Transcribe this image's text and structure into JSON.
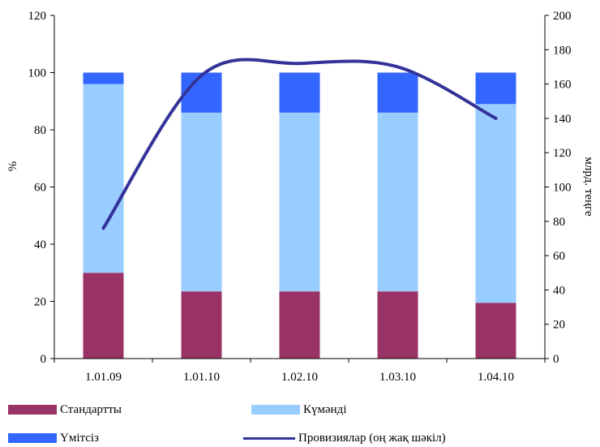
{
  "chart_data": {
    "type": "bar",
    "stacked": true,
    "categories": [
      "1.01.09",
      "1.01.10",
      "1.02.10",
      "1.03.10",
      "1.04.10"
    ],
    "series": [
      {
        "name": "Стандартты",
        "axis": "left",
        "color": "#993366",
        "values": [
          30,
          23.5,
          23.5,
          23.5,
          19.5
        ]
      },
      {
        "name": "Күмәнді",
        "axis": "left",
        "color": "#99ccff",
        "values": [
          66,
          62.5,
          62.5,
          62.5,
          69.5
        ]
      },
      {
        "name": "Үмітсіз",
        "axis": "left",
        "color": "#3366ff",
        "values": [
          4,
          14,
          14,
          14,
          11
        ]
      },
      {
        "name": "Провизиялар (оң жақ шәкіл)",
        "type": "line",
        "axis": "right",
        "color": "#333399",
        "values": [
          76,
          165,
          172,
          170,
          140
        ]
      }
    ],
    "ylabel": "%",
    "ylim": [
      0,
      120
    ],
    "yticks": [
      0,
      20,
      40,
      60,
      80,
      100,
      120
    ],
    "y2label": "млрд. теңге",
    "y2lim": [
      0,
      200
    ],
    "y2ticks": [
      0,
      20,
      40,
      60,
      80,
      100,
      120,
      140,
      160,
      180,
      200
    ],
    "legend_position": "bottom",
    "grid": false
  }
}
